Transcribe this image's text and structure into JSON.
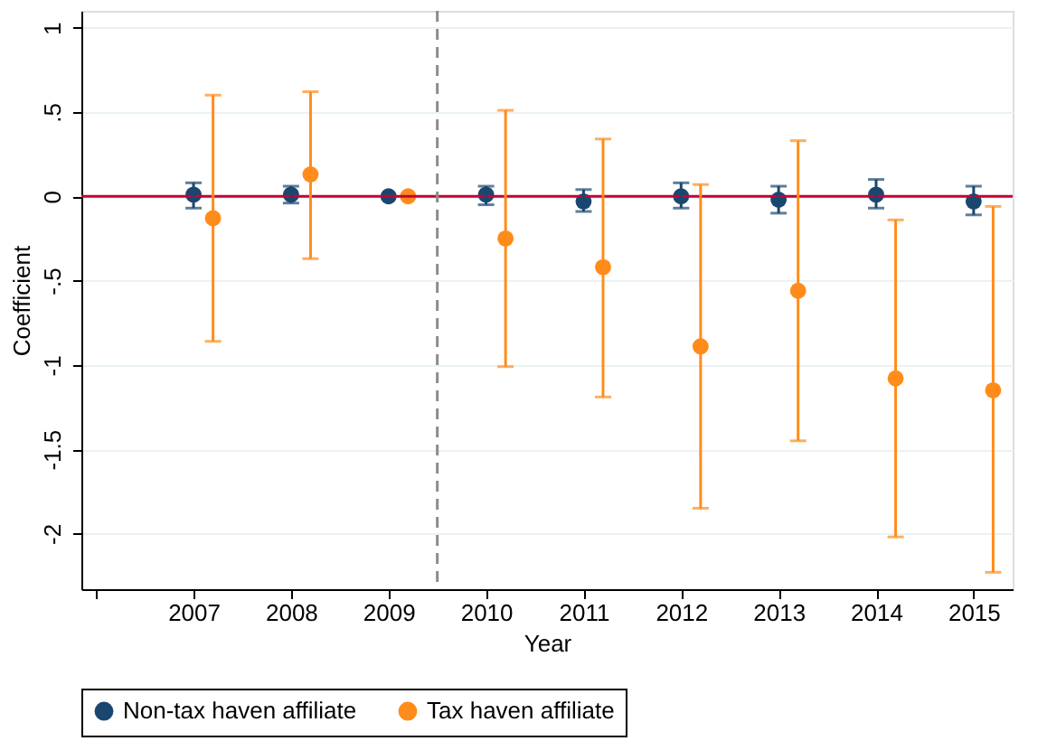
{
  "chart_data": {
    "type": "scatter",
    "xlabel": "Year",
    "ylabel": "Coefficient",
    "xlim": [
      2005.85,
      2015.4
    ],
    "xticks": [
      {
        "value": 2006,
        "label": null
      },
      2007,
      2008,
      2009,
      2010,
      2011,
      2012,
      2013,
      2014,
      2015
    ],
    "ylim": [
      -2.33,
      1.1
    ],
    "yticks": [
      {
        "value": 1,
        "label": "1"
      },
      {
        "value": 0.5,
        "label": ".5"
      },
      0,
      {
        "value": -0.5,
        "label": "-.5"
      },
      -1,
      {
        "value": -1.5,
        "label": "-1.5"
      },
      -2
    ],
    "series": [
      {
        "name": "Non-tax haven affiliate",
        "color": "#1a476f",
        "x": [
          2007,
          2008,
          2009,
          2010,
          2011,
          2012,
          2013,
          2014,
          2015
        ],
        "values": [
          0.01,
          0.01,
          0,
          0.01,
          -0.03,
          0,
          -0.02,
          0.01,
          -0.03
        ],
        "errors": [
          [
            -0.07,
            0.08
          ],
          [
            -0.04,
            0.06
          ],
          null,
          [
            -0.05,
            0.06
          ],
          [
            -0.09,
            0.04
          ],
          [
            -0.07,
            0.08
          ],
          [
            -0.1,
            0.06
          ],
          [
            -0.07,
            0.1
          ],
          [
            -0.11,
            0.06
          ]
        ]
      },
      {
        "name": "Tax haven affiliate",
        "color": "#ff8c1a",
        "x": [
          2007.2,
          2008.2,
          2009.2,
          2010.2,
          2011.2,
          2012.2,
          2013.2,
          2014.2,
          2015.2
        ],
        "values": [
          -0.13,
          0.13,
          0,
          -0.25,
          -0.42,
          -0.89,
          -0.56,
          -1.08,
          -1.15
        ],
        "errors": [
          [
            -0.86,
            0.6
          ],
          [
            -0.37,
            0.62
          ],
          null,
          [
            -1.01,
            0.51
          ],
          [
            -1.19,
            0.34
          ],
          [
            -1.85,
            0.07
          ],
          [
            -1.45,
            0.33
          ],
          [
            -2.02,
            -0.14
          ],
          [
            -2.23,
            -0.06
          ]
        ]
      }
    ],
    "ref_lines": [
      {
        "axis": "y",
        "value": 0,
        "color": "#c10534",
        "line_style": "solid"
      },
      {
        "axis": "x",
        "value": 2009.5,
        "color": "#8c8c8c",
        "line_style": "dashed"
      }
    ],
    "grid": "y",
    "legend": "bottom",
    "marker": "circle"
  }
}
